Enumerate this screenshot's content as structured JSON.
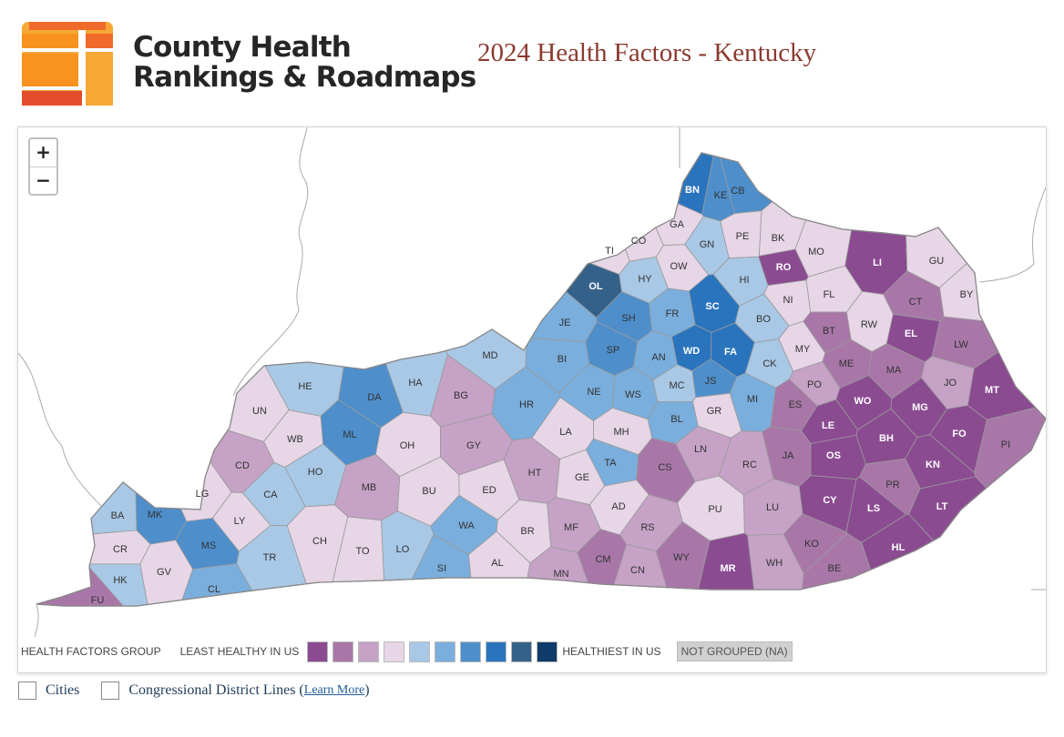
{
  "header": {
    "brand_line1": "County Health",
    "brand_line2": "Rankings & Roadmaps",
    "title": "2024 Health Factors - Kentucky"
  },
  "colors": {
    "g1": "#8b4b91",
    "g2": "#a877a8",
    "g3": "#c5a2c6",
    "g4": "#e6d6e6",
    "g5": "#a8c8e6",
    "g6": "#7aaedc",
    "g7": "#4e8ecb",
    "g8": "#2a74bd",
    "g9": "#346189",
    "g10": "#0e3b69",
    "county_border": "#9a9a9a",
    "outline": "#888888",
    "na": "#d0d0d0"
  },
  "zoom": {
    "in_label": "+",
    "out_label": "−"
  },
  "counties": [
    {
      "code": "BN",
      "group": 8
    },
    {
      "code": "KE",
      "group": 7
    },
    {
      "code": "CB",
      "group": 7
    },
    {
      "code": "GA",
      "group": 4
    },
    {
      "code": "CO",
      "group": 4
    },
    {
      "code": "TI",
      "group": 4
    },
    {
      "code": "GN",
      "group": 5
    },
    {
      "code": "PE",
      "group": 4
    },
    {
      "code": "BK",
      "group": 4
    },
    {
      "code": "MO",
      "group": 4
    },
    {
      "code": "OW",
      "group": 4
    },
    {
      "code": "RO",
      "group": 1
    },
    {
      "code": "LI",
      "group": 1
    },
    {
      "code": "GU",
      "group": 4
    },
    {
      "code": "OL",
      "group": 9
    },
    {
      "code": "HY",
      "group": 5
    },
    {
      "code": "HI",
      "group": 5
    },
    {
      "code": "NI",
      "group": 4
    },
    {
      "code": "FL",
      "group": 4
    },
    {
      "code": "BY",
      "group": 4
    },
    {
      "code": "SH",
      "group": 7
    },
    {
      "code": "SC",
      "group": 8
    },
    {
      "code": "CT",
      "group": 2
    },
    {
      "code": "JE",
      "group": 6
    },
    {
      "code": "FR",
      "group": 6
    },
    {
      "code": "BO",
      "group": 5
    },
    {
      "code": "BT",
      "group": 2
    },
    {
      "code": "RW",
      "group": 4
    },
    {
      "code": "SP",
      "group": 7
    },
    {
      "code": "EL",
      "group": 1
    },
    {
      "code": "WD",
      "group": 8
    },
    {
      "code": "FA",
      "group": 8
    },
    {
      "code": "LW",
      "group": 2
    },
    {
      "code": "MD",
      "group": 5
    },
    {
      "code": "BI",
      "group": 6
    },
    {
      "code": "AN",
      "group": 6
    },
    {
      "code": "MY",
      "group": 4
    },
    {
      "code": "CK",
      "group": 5
    },
    {
      "code": "ME",
      "group": 2
    },
    {
      "code": "MA",
      "group": 2
    },
    {
      "code": "HE",
      "group": 5
    },
    {
      "code": "HA",
      "group": 5
    },
    {
      "code": "JS",
      "group": 7
    },
    {
      "code": "PO",
      "group": 3
    },
    {
      "code": "JO",
      "group": 3
    },
    {
      "code": "MT",
      "group": 1
    },
    {
      "code": "DA",
      "group": 7
    },
    {
      "code": "BG",
      "group": 3
    },
    {
      "code": "NE",
      "group": 6
    },
    {
      "code": "WS",
      "group": 6
    },
    {
      "code": "MC",
      "group": 5
    },
    {
      "code": "WO",
      "group": 1
    },
    {
      "code": "UN",
      "group": 4
    },
    {
      "code": "HR",
      "group": 6
    },
    {
      "code": "MI",
      "group": 6
    },
    {
      "code": "ES",
      "group": 2
    },
    {
      "code": "MG",
      "group": 1
    },
    {
      "code": "GR",
      "group": 4
    },
    {
      "code": "BL",
      "group": 6
    },
    {
      "code": "LA",
      "group": 4
    },
    {
      "code": "MH",
      "group": 4
    },
    {
      "code": "LE",
      "group": 1
    },
    {
      "code": "WB",
      "group": 4
    },
    {
      "code": "ML",
      "group": 7
    },
    {
      "code": "OH",
      "group": 4
    },
    {
      "code": "GY",
      "group": 3
    },
    {
      "code": "LN",
      "group": 3
    },
    {
      "code": "BH",
      "group": 1
    },
    {
      "code": "FO",
      "group": 1
    },
    {
      "code": "PI",
      "group": 2
    },
    {
      "code": "JA",
      "group": 2
    },
    {
      "code": "OS",
      "group": 1
    },
    {
      "code": "TA",
      "group": 6
    },
    {
      "code": "CD",
      "group": 3
    },
    {
      "code": "HO",
      "group": 5
    },
    {
      "code": "HT",
      "group": 3
    },
    {
      "code": "GE",
      "group": 4
    },
    {
      "code": "CS",
      "group": 2
    },
    {
      "code": "RC",
      "group": 3
    },
    {
      "code": "KN",
      "group": 1
    },
    {
      "code": "MB",
      "group": 3
    },
    {
      "code": "BU",
      "group": 4
    },
    {
      "code": "ED",
      "group": 4
    },
    {
      "code": "LG",
      "group": 4
    },
    {
      "code": "CA",
      "group": 5
    },
    {
      "code": "PR",
      "group": 2
    },
    {
      "code": "MK",
      "group": 7
    },
    {
      "code": "CY",
      "group": 1
    },
    {
      "code": "AD",
      "group": 4
    },
    {
      "code": "LU",
      "group": 3
    },
    {
      "code": "LT",
      "group": 1
    },
    {
      "code": "LS",
      "group": 1
    },
    {
      "code": "BA",
      "group": 5
    },
    {
      "code": "LY",
      "group": 4
    },
    {
      "code": "WA",
      "group": 6
    },
    {
      "code": "PU",
      "group": 4
    },
    {
      "code": "BR",
      "group": 4
    },
    {
      "code": "MF",
      "group": 3
    },
    {
      "code": "CH",
      "group": 4
    },
    {
      "code": "MS",
      "group": 7
    },
    {
      "code": "RS",
      "group": 3
    },
    {
      "code": "CR",
      "group": 4
    },
    {
      "code": "TR",
      "group": 5
    },
    {
      "code": "LO",
      "group": 5
    },
    {
      "code": "TO",
      "group": 4
    },
    {
      "code": "KO",
      "group": 2
    },
    {
      "code": "HL",
      "group": 1
    },
    {
      "code": "GV",
      "group": 4
    },
    {
      "code": "AL",
      "group": 4
    },
    {
      "code": "CM",
      "group": 2
    },
    {
      "code": "WY",
      "group": 2
    },
    {
      "code": "MR",
      "group": 1
    },
    {
      "code": "WH",
      "group": 3
    },
    {
      "code": "BE",
      "group": 2
    },
    {
      "code": "HK",
      "group": 5
    },
    {
      "code": "SI",
      "group": 6
    },
    {
      "code": "MN",
      "group": 3
    },
    {
      "code": "CN",
      "group": 3
    },
    {
      "code": "CL",
      "group": 6
    },
    {
      "code": "FU",
      "group": 2
    }
  ],
  "legend": {
    "title": "HEALTH FACTORS GROUP",
    "least_label": "LEAST HEALTHY IN US",
    "healthiest_label": "HEALTHIEST IN US",
    "not_grouped_label": "NOT GROUPED (NA)"
  },
  "controls": {
    "cities_label": "Cities",
    "district_label": "Congressional District Lines (",
    "learn_more": "Learn More",
    "close_paren": ")"
  }
}
